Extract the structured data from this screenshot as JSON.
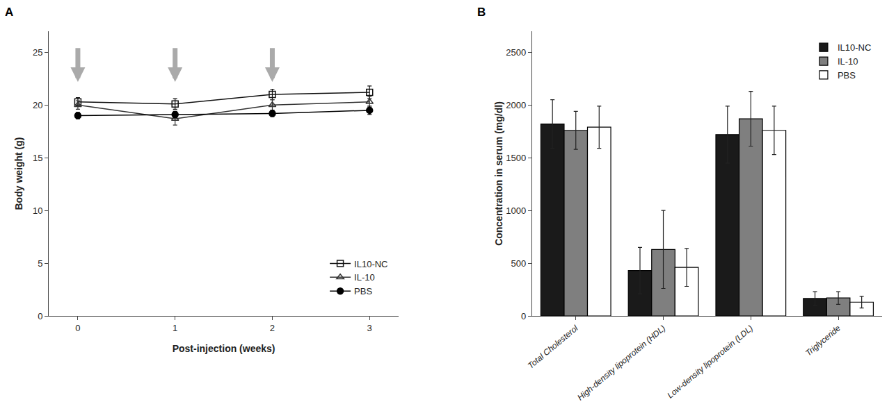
{
  "chart_data": [
    {
      "type": "line",
      "title": "A",
      "xlabel": "Post-injection (weeks)",
      "ylabel": "Body weight (g)",
      "x": [
        0,
        1,
        2,
        3
      ],
      "xlim": [
        -0.3,
        3.3
      ],
      "xticks": [
        0,
        1,
        2,
        3
      ],
      "ylim": [
        0,
        27
      ],
      "yticks": [
        0,
        5,
        10,
        15,
        20,
        25
      ],
      "grid": false,
      "legend": "lower right",
      "arrows": [
        {
          "x": 0,
          "y_tip": 22.2,
          "y_tail": 25.5
        },
        {
          "x": 1,
          "y_tip": 22.2,
          "y_tail": 25.5
        },
        {
          "x": 2,
          "y_tip": 22.2,
          "y_tail": 25.5
        }
      ],
      "series": [
        {
          "name": "IL10-NC",
          "color": "#111111",
          "marker": "open square",
          "line_style": "solid",
          "values": [
            20.3,
            20.1,
            21.0,
            21.2
          ],
          "yerr": [
            0.4,
            0.5,
            0.5,
            0.6
          ]
        },
        {
          "name": "IL-10",
          "color": "#333333",
          "marker": "open triangle",
          "line_style": "solid",
          "values": [
            20.0,
            18.7,
            20.0,
            20.3
          ],
          "yerr": [
            0.4,
            0.6,
            0.5,
            0.5
          ]
        },
        {
          "name": "PBS",
          "color": "#000000",
          "marker": "filled circle",
          "line_style": "solid",
          "values": [
            19.0,
            19.1,
            19.2,
            19.5
          ],
          "yerr": [
            0.3,
            0.3,
            0.3,
            0.4
          ]
        }
      ]
    },
    {
      "type": "bar",
      "title": "B",
      "ylabel": "Concentration in serum (mg/dl)",
      "categories": [
        "Total Cholesterol",
        "High-density lipoprotein (HDL)",
        "Low-density lipoprotein (LDL)",
        "Triglyceride"
      ],
      "ylim": [
        0,
        2700
      ],
      "yticks": [
        0,
        500,
        1000,
        1500,
        2000,
        2500
      ],
      "grid": false,
      "legend": "upper right",
      "series": [
        {
          "name": "IL10-NC",
          "color": "#1a1a1a",
          "values": [
            1820,
            430,
            1720,
            165
          ],
          "yerr": [
            230,
            220,
            270,
            65
          ]
        },
        {
          "name": "IL-10",
          "color": "#7f7f7f",
          "values": [
            1760,
            630,
            1870,
            170
          ],
          "yerr": [
            180,
            370,
            260,
            60
          ]
        },
        {
          "name": "PBS",
          "color": "#ffffff",
          "values": [
            1790,
            460,
            1760,
            130
          ],
          "yerr": [
            200,
            180,
            230,
            55
          ]
        }
      ]
    }
  ]
}
